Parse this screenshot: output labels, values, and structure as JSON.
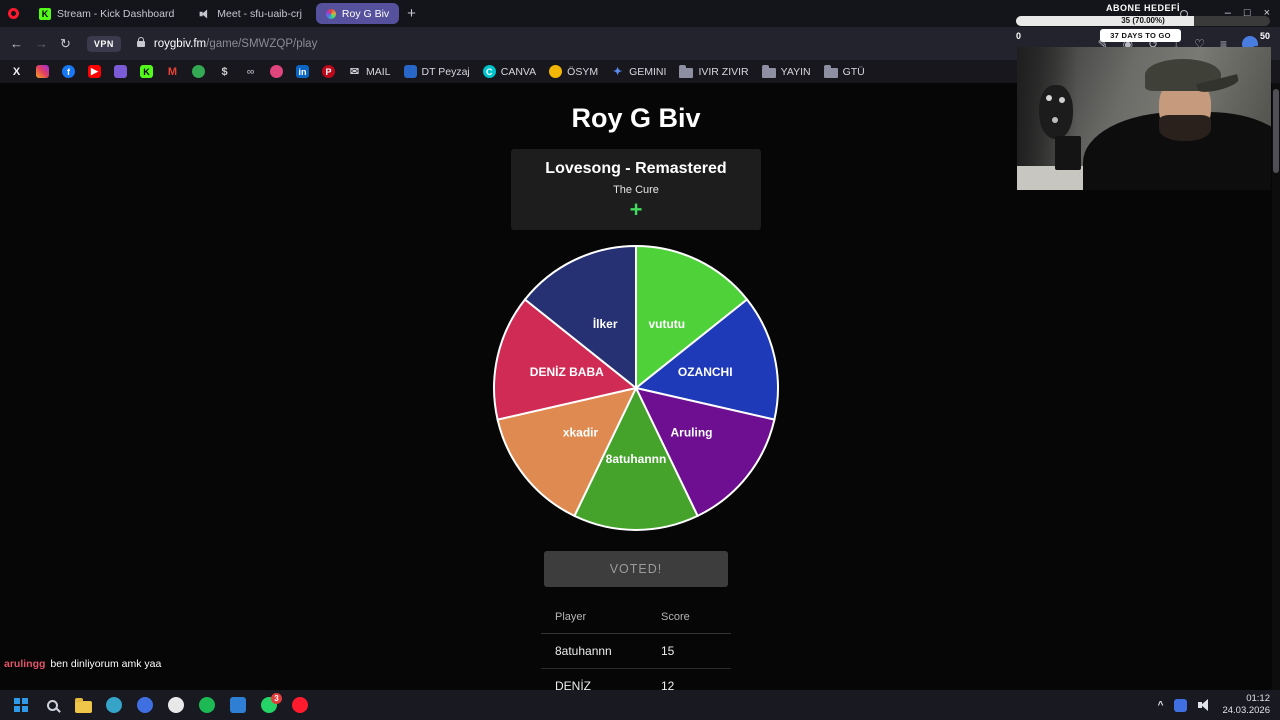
{
  "window": {
    "minimize": "–",
    "maximize": "□",
    "close": "×"
  },
  "browser": {
    "tabs": [
      {
        "label": "Stream - Kick Dashboard"
      },
      {
        "label": "Meet - sfu-uaib-crj"
      },
      {
        "label": "Roy G Biv",
        "active": true
      }
    ],
    "new_tab_label": "+",
    "nav": {
      "back": "←",
      "forward": "→",
      "reload": "↻"
    },
    "address": {
      "vpn_badge": "VPN",
      "domain": "roygbiv.fm",
      "path": "/game/SMWZQP/play"
    },
    "address_actions": [
      {
        "name": "compose-icon",
        "glyph": "✎"
      },
      {
        "name": "snapshot-icon",
        "glyph": "◉"
      },
      {
        "name": "history-icon",
        "glyph": "↺"
      },
      {
        "name": "download-icon",
        "glyph": "↓"
      },
      {
        "name": "bookmarks-heart-icon",
        "glyph": "♡"
      },
      {
        "name": "panels-menu-icon",
        "glyph": "≡"
      },
      {
        "name": "profile-avatar",
        "avatar": true
      }
    ],
    "bookmarks": [
      {
        "name": "x-icon",
        "shape": "glyph",
        "glyph": "X",
        "color": "#f2f2f2"
      },
      {
        "name": "instagram-icon",
        "shape": "square",
        "gradient": "linear-gradient(45deg,#f5a623,#e4405f,#a02ce0)"
      },
      {
        "name": "facebook-icon",
        "shape": "circle",
        "color": "#1877f2",
        "glyph": "f"
      },
      {
        "name": "youtube-icon",
        "shape": "square",
        "color": "#ff0000",
        "glyph": "▶"
      },
      {
        "name": "purple-app-icon",
        "shape": "square",
        "color": "#7b5cd6"
      },
      {
        "name": "kick-icon",
        "shape": "square",
        "color": "#53fc18",
        "glyph": "K",
        "fg": "#000000"
      },
      {
        "name": "gmail-icon",
        "shape": "glyph",
        "glyph": "M",
        "color": "#ea4335"
      },
      {
        "name": "maps-pin-icon",
        "shape": "circle",
        "color": "#34a853"
      },
      {
        "name": "dollar-icon",
        "shape": "glyph",
        "glyph": "$",
        "color": "#cfcfcf"
      },
      {
        "name": "link-app-icon",
        "shape": "glyph",
        "glyph": "∞",
        "color": "#9a9aa5"
      },
      {
        "name": "pink-app-icon",
        "shape": "circle",
        "color": "#e0457b"
      },
      {
        "name": "linkedin-icon",
        "shape": "square",
        "color": "#0a66c2",
        "glyph": "in"
      },
      {
        "name": "pinterest-icon",
        "shape": "circle",
        "color": "#bd081c",
        "glyph": "P"
      },
      {
        "name": "mail-bookmark",
        "label": "MAIL",
        "shape": "glyph",
        "glyph": "✉",
        "color": "#c9c9d2"
      },
      {
        "name": "dt-peyzaj-bookmark",
        "label": "DT Peyzaj",
        "shape": "square",
        "color": "#2866c8"
      },
      {
        "name": "canva-bookmark",
        "label": "CANVA",
        "shape": "circle",
        "color": "#00c4cc",
        "glyph": "C"
      },
      {
        "name": "osym-bookmark",
        "label": "ÖSYM",
        "shape": "circle",
        "color": "#f2b705"
      },
      {
        "name": "gemini-bookmark",
        "label": "GEMINI",
        "shape": "glyph",
        "glyph": "✦",
        "color": "#5a8cf0"
      },
      {
        "name": "ivir-zivir-folder",
        "label": "IVIR ZIVIR",
        "shape": "folder"
      },
      {
        "name": "yayin-folder",
        "label": "YAYIN",
        "shape": "folder"
      },
      {
        "name": "gtu-folder",
        "label": "GTÜ",
        "shape": "folder"
      }
    ]
  },
  "page": {
    "title": "Roy G Biv",
    "song_card": {
      "title": "Lovesong - Remastered",
      "artist": "The Cure",
      "add_label": "+"
    },
    "vote_button_label": "VOTED!",
    "table": {
      "headers": [
        "Player",
        "Score"
      ],
      "rows": [
        [
          "8atuhannn",
          "15"
        ],
        [
          "DENİZ BABA",
          "12"
        ]
      ]
    }
  },
  "chart_data": {
    "type": "pie",
    "labels": [
      "vututu",
      "OZANCHI",
      "Aruling",
      "8atuhannn",
      "xkadir",
      "DENİZ BABA",
      "İlker"
    ],
    "values": [
      1,
      1,
      1,
      1,
      1,
      1,
      1
    ],
    "colors": [
      "#4fd13a",
      "#1e3ab8",
      "#6d0f90",
      "#45a32c",
      "#de8a50",
      "#cf2b55",
      "#253172"
    ],
    "start_angle_deg": -90,
    "direction": "clockwise",
    "note": "voting wheel with 7 equal player segments"
  },
  "overlays": {
    "goal": {
      "title": "ABONE HEDEFİ",
      "progress_label": "35 (70.00%)",
      "percent": 70,
      "days_label": "37 DAYS TO GO",
      "range_min": "0",
      "range_max": "50"
    },
    "chat": {
      "username": "arulingg",
      "message": "ben dinliyorum amk yaa"
    }
  },
  "taskbar": {
    "apps": [
      {
        "name": "start-button",
        "shape": "start"
      },
      {
        "name": "search-button",
        "shape": "search"
      },
      {
        "name": "file-explorer-button",
        "shape": "folder"
      },
      {
        "name": "edge-app",
        "shape": "circle",
        "color": "#35a4c8"
      },
      {
        "name": "blue-app",
        "shape": "circle",
        "color": "#3f6fe0"
      },
      {
        "name": "github-app",
        "shape": "circle",
        "color": "#e8e8e8"
      },
      {
        "name": "spotify-app",
        "shape": "circle",
        "color": "#1db954"
      },
      {
        "name": "vscode-app",
        "shape": "square",
        "color": "#2f7fd4"
      },
      {
        "name": "whatsapp-app",
        "shape": "circle",
        "color": "#25d366",
        "badge": "3"
      },
      {
        "name": "opera-app",
        "shape": "circle",
        "color": "#ff1b2d"
      }
    ],
    "tray": {
      "chevron": "^",
      "time": "01:12",
      "date": "24.03.2026"
    }
  }
}
